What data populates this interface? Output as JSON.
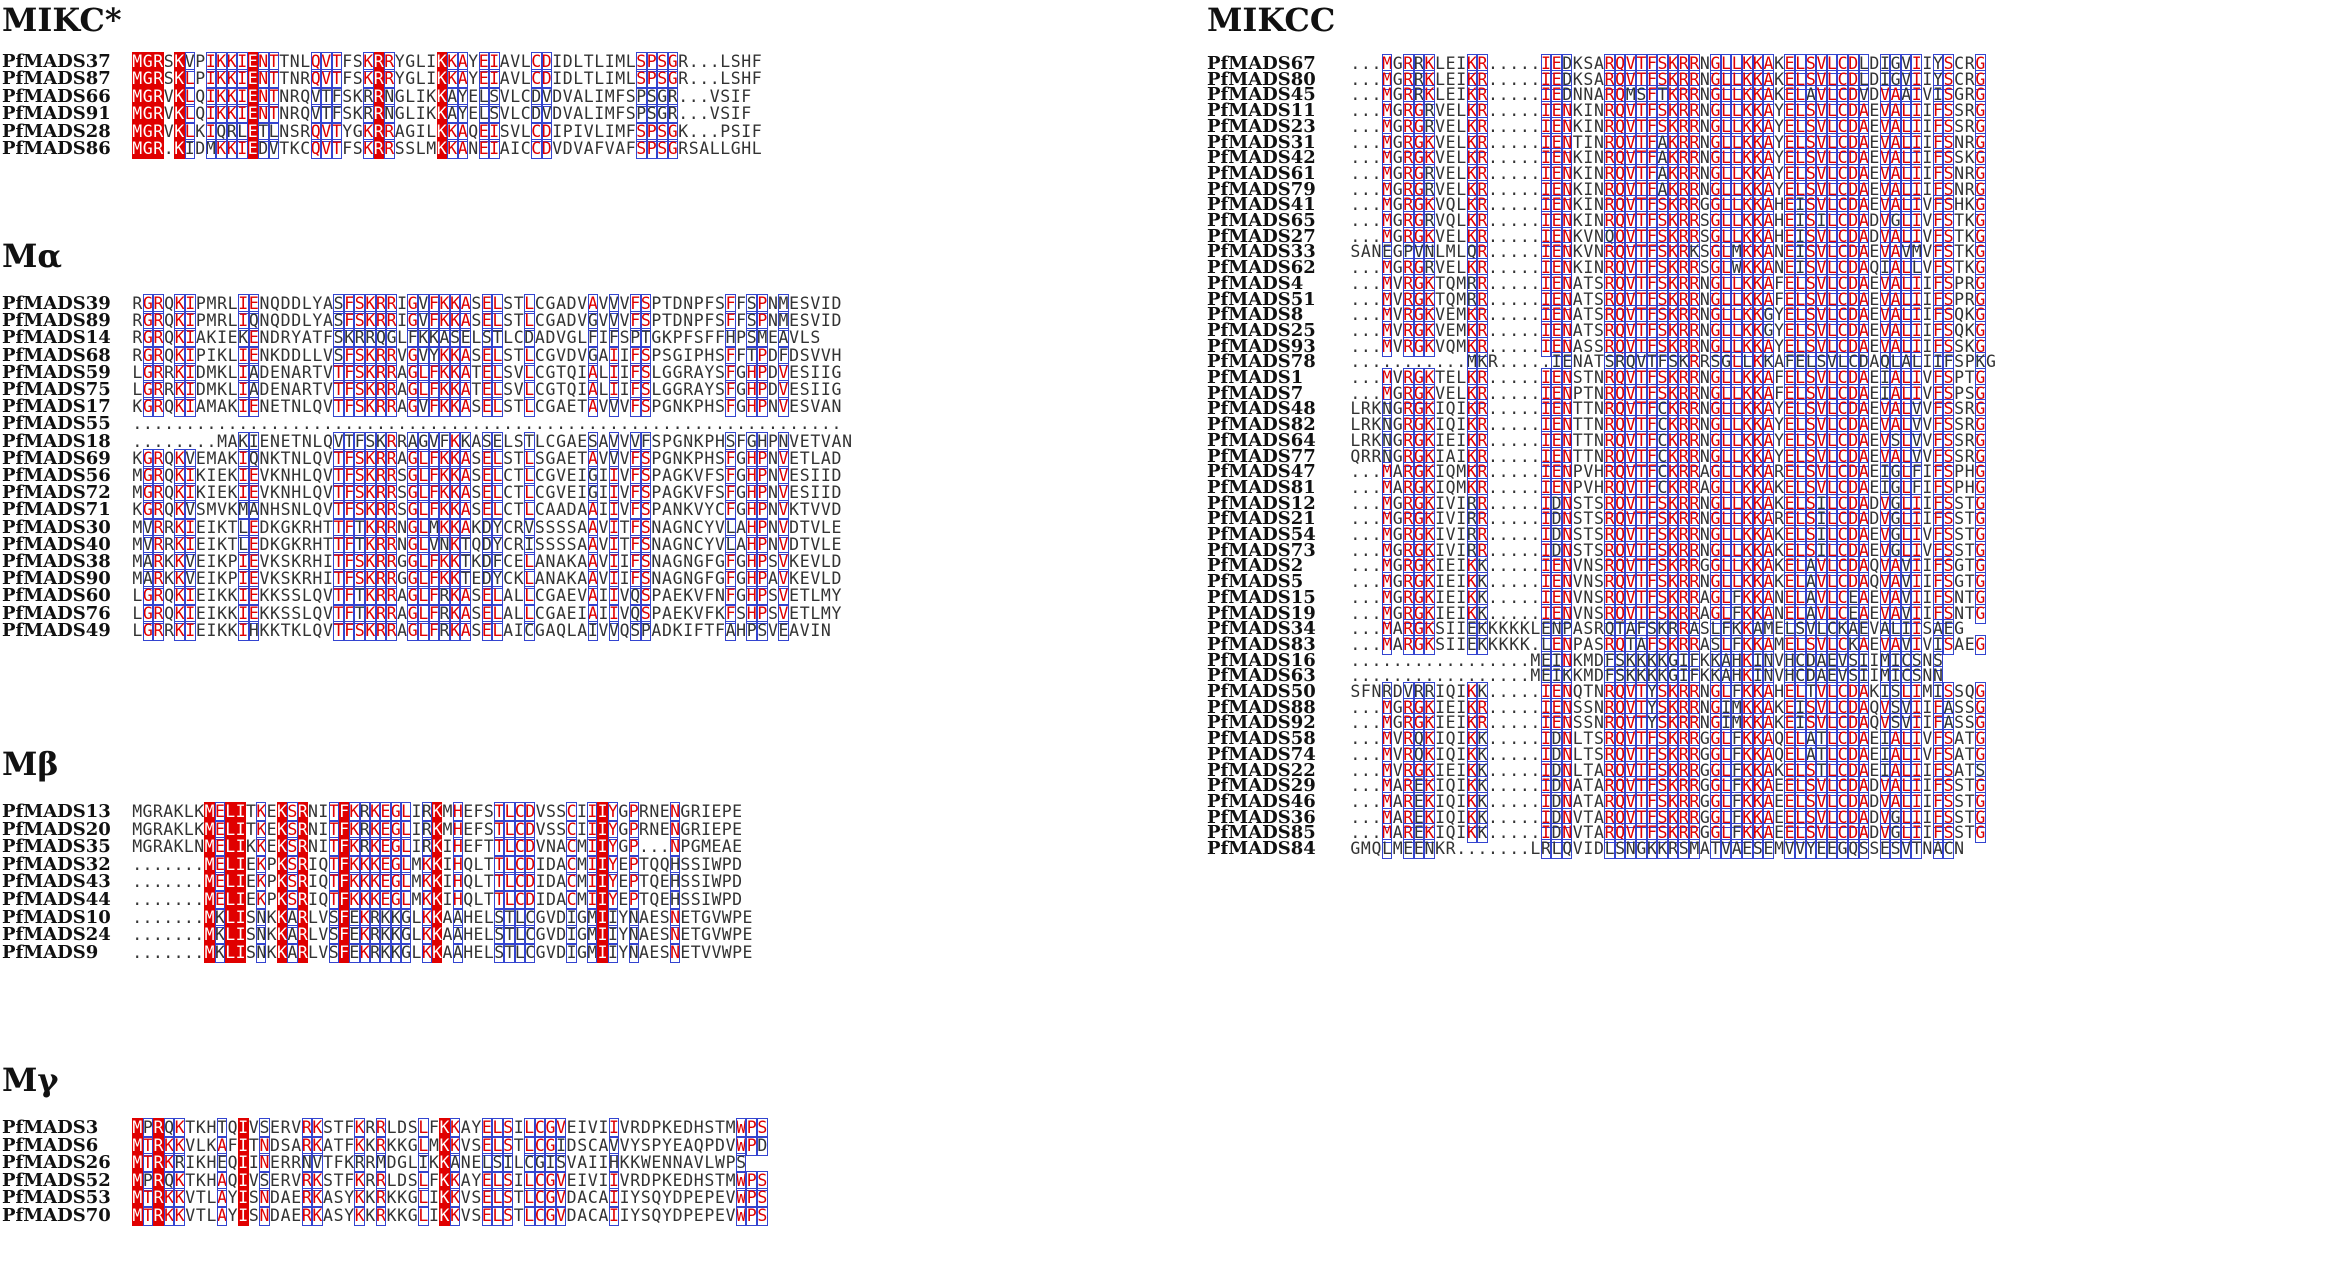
{
  "colors": {
    "identical_bg": "#e00000",
    "similar_text": "#e00000",
    "box_border": "#3344d0",
    "text": "#333333"
  },
  "panels": [
    {
      "title": "MIKC*",
      "rows": [
        {
          "name": "PfMADS37",
          "seq": "MGRSKVPIKKIENTTNLQVTFSKRRYGLIKKAYEIAVLCDIDLTLIMLSPSGR...LSHF"
        },
        {
          "name": "PfMADS87",
          "seq": "MGRSKLPIKKIENTTNRQVTFSKRRYGLIKKAYEIAVLCDIDLTLIMLSPSGR...LSHF"
        },
        {
          "name": "PfMADS66",
          "seq": "MGRVKLQIKKIENTNRQVTFSKRRNGLIKKAYELSVLCDVDVALIMFSPSGR...VSIF"
        },
        {
          "name": "PfMADS91",
          "seq": "MGRVKLQIKKIENTNRQVTFSKRRNGLIKKAYELSVLCDVDVALIMFSPSGR...VSIF"
        },
        {
          "name": "PfMADS28",
          "seq": "MGRVKLKIQRLETLNSRQVTYGKRRAGILKKAQEISVLCDIPIVLIMFSPSGK...PSIF"
        },
        {
          "name": "PfMADS86",
          "seq": "MGR.KIDMKKIEDVTKCQVTFSKRRSSLMKKANEIAICCDVDVAFVAFSPSGRSALLGHL"
        }
      ]
    },
    {
      "title": "Mα",
      "rows": [
        {
          "name": "PfMADS39",
          "seq": "RGRQKIPMRLIENQDDLYASFSKRRIGVFKKASELSTLCGADVAVVVFSPTDNPFSFFSPNMESVID"
        },
        {
          "name": "PfMADS89",
          "seq": "RGRQKIPMRLIQNQDDLYASFSKRRIGVFKKASELSTLCGADVGVVVFSPTDNPFSFFSPNMESVID"
        },
        {
          "name": "PfMADS14",
          "seq": "RGRQKIAKIEKENDRYATFSKRRQGLFKKASELSTLCDADVGLFIFSPTGKPFSFFHPSMEAVLS"
        },
        {
          "name": "PfMADS68",
          "seq": "RGRQKIPIKLIENKDDLLVSFSKRRVGVYKKASELSTLCGVDVGAIIFSPSGIPHSFFTPDFDSVVH"
        },
        {
          "name": "PfMADS59",
          "seq": "LGRRKIDMKLIADENARTVTFSKRRAGLFKKATELSVLCGTQIALIIFSLGGRAYSFGHPDVESIIG"
        },
        {
          "name": "PfMADS75",
          "seq": "LGRRKIDMKLIADENARTVTFSKRRAGLFKKATELSVLCGTQIALIIFSLGGRAYSFGHPDVESIIG"
        },
        {
          "name": "PfMADS17",
          "seq": "KGRQKIAMAKIENETNLQVTFSKRRAGVFKKASELSTLCGAETAVVVFSPGNKPHSFGHPNVESVAN"
        },
        {
          "name": "PfMADS55",
          "seq": "..................................................................."
        },
        {
          "name": "PfMADS18",
          "seq": "........MAKIENETNLQVTFSKRRAGVFKKASELSTLCGAESAVVVFSPGNKPHSFGHPNVETVAN"
        },
        {
          "name": "PfMADS69",
          "seq": "KGRQKVEMAKIQNKTNLQVTFSKRRAGLFKKASELSTLSGAETAVVVFSPGNKPHSFGHPNVETLAD"
        },
        {
          "name": "PfMADS56",
          "seq": "MGRQKIKIEKIEVKNHLQVTFSKRRSGLFKKASELCTLCGVEIGIIVFSPAGKVFSFGHPNVESIID"
        },
        {
          "name": "PfMADS72",
          "seq": "MGRQKIKIEKIEVKNHLQVTFSKRRSGLFKKASELCTLCGVEIGIIVFSPAGKVFSFGHPNVESIID"
        },
        {
          "name": "PfMADS71",
          "seq": "KGRQKVSMVKMANHSNLQVTFSKRRSGLFKKASELCTLCAADAAIIVFSPANKVYCFGHPNVKTVVD"
        },
        {
          "name": "PfMADS30",
          "seq": "MVRRKIEIKTLEDKGKRHTTFTKRRNGLMKKAKDYCRVSSSSAAVITFSNAGNCYVLAHPNVDTVLE"
        },
        {
          "name": "PfMADS40",
          "seq": "MVRRKIEIKTLEDKGKRHTTFTKRRNGLVNKTQDYCRISSSSAAVITFSNAGNCYVLAHPNVDTVLE"
        },
        {
          "name": "PfMADS38",
          "seq": "MARKKVEIKPIEVKSKRHITFSKRRGGLFKKTKDFCELANAKAAVIIFSNAGNGFGFGHPSVKEVLD"
        },
        {
          "name": "PfMADS90",
          "seq": "MARKKVEIKPIEVKSKRHITFSKRRGGLFKKTEDYCKLANAKAAVIIFSNAGNGFGFGHPAVKEVLD"
        },
        {
          "name": "PfMADS60",
          "seq": "LGRQKIEIKKIEKKSSLQVTFTKRRAGLFRKASELALLCGAEVAIIVQSPAEKVFNFGHPSVETLMY"
        },
        {
          "name": "PfMADS76",
          "seq": "LGRQKIEIKKIEKKSSLQVTFTKRRAGLFRKASELALLCGAEIAIIVQSPAEKVFKFSHPSVETLMY"
        },
        {
          "name": "PfMADS49",
          "seq": "LGRRKIEIKKIHKKTKLQVTFSKRRAGLFRKASELAICGAQLAIVVQSPADKIFTFAHPSVEAVIN"
        }
      ]
    },
    {
      "title": "Mβ",
      "rows": [
        {
          "name": "PfMADS13",
          "seq": "MGRAKLKMELITKEKSRNITFKRKEGLIRKMHEFSTLCDVSSCIIIYGPRNENGRIEPE"
        },
        {
          "name": "PfMADS20",
          "seq": "MGRAKLKMELITKEKSRNITFKRKEGLIRKMHEFSTLCDVSSCIIIYGPRNENGRIEPE"
        },
        {
          "name": "PfMADS35",
          "seq": "MGRAKLNMELIKKEKSRNITFKRKEGLIRKIHEFTTLCDVNACMIIYGP...NPGMEAE"
        },
        {
          "name": "PfMADS32",
          "seq": ".......MELIEKPKSRIQTFKKKEGLMKKIHQLTTLCDIDACMIIYEPTQQHSSIWPD"
        },
        {
          "name": "PfMADS43",
          "seq": ".......MELIEKPKSRIQTFKKKEGLMKKIHQLTTLCDIDACMIIYEPTQEHSSIWPD"
        },
        {
          "name": "PfMADS44",
          "seq": ".......MELIEKPKSRIQTFKKKEGLMKKIHQLTTLCDIDACMIIYEPTQEHSSIWPD"
        },
        {
          "name": "PfMADS10",
          "seq": ".......MKLISNKKARLVSFEKRKKGLKKAAHELSTLCGVDIGMIIYNAESNETGVWPE"
        },
        {
          "name": "PfMADS24",
          "seq": ".......MKLISNKKARLVSFEKRKKGLKKAAHELSTLCGVDIGMIIYNAESNETGVWPE"
        },
        {
          "name": "PfMADS9",
          "seq": ".......MKLISNKKARLVSFEKRKKGLKKAAHELSTLCGVDIGMIIYNAESNETVVWPE"
        }
      ]
    },
    {
      "title": "Mγ",
      "rows": [
        {
          "name": "PfMADS3",
          "seq": "MPRQKTKHTQIVSERVRKSTFKRRLDSLFKKAYELSILCGVEIVIIVRDPKEDHSTMWPS"
        },
        {
          "name": "PfMADS6",
          "seq": "MTRKKVLKAFITNDSARKATFKKRKKGLMKKVSELSTLCGIDSCAVVYSPYEAQPDVWPD"
        },
        {
          "name": "PfMADS26",
          "seq": "MTRKRIKHEQIINERRNVTFKRRMDGLIKKANELSILCGISVAIIHKKWENNAVLWPS"
        },
        {
          "name": "PfMADS52",
          "seq": "MPRQKTKHAQIVSERVRKSTFKRRLDSLFKKAYELSILCGVEIVIIVRDPKEDHSTMWPS"
        },
        {
          "name": "PfMADS53",
          "seq": "MTRKKVTLAYISNDAERKASYKKRKKGLIKKVSELSTLCGVDACAIIYSQYDPEPEVWPS"
        },
        {
          "name": "PfMADS70",
          "seq": "MTRKKVTLAYISNDAERKASYKKRKKGLIKKVSELSTLCGVDACAIIYSQYDPEPEVWPS"
        }
      ]
    },
    {
      "title": "MIKCC",
      "rows": [
        {
          "name": "PfMADS67",
          "seq": "...MGRRKLEIKR.....IEDKSARQVTFSKRRNGLLKKAKELSVLCDLDIGVIIYSCRG"
        },
        {
          "name": "PfMADS80",
          "seq": "...MGRRKLEIKR.....IEDKSARQVTFSKRRNGLLKKAKELSVLCDLDIGVIIYSCRG"
        },
        {
          "name": "PfMADS45",
          "seq": "...MGRRKLEIKR.....IEDNNARQMSFTKRRNGLLKKAKELAVLCDVDVAAIVISGRG"
        },
        {
          "name": "PfMADS11",
          "seq": "...MGRGRVELKR.....IENKINRQVTFSKRRNGLLKKAYELSVLCDAEVALIIFSSRG"
        },
        {
          "name": "PfMADS23",
          "seq": "...MGRGRVELKR.....IENKINRQVTFSKRRNGLLKKAYELSVLCDAEVALIIFSSRG"
        },
        {
          "name": "PfMADS31",
          "seq": "...MGRGKVELKR.....IENTINRQVTFAKRRNGLLKKAYELSVLCDAEVALIIFSNRG"
        },
        {
          "name": "PfMADS42",
          "seq": "...MGRGKVELKR.....IENKINRQVTFAKRRNGLLKKAYELSVLCDAEVALIIFSSKG"
        },
        {
          "name": "PfMADS61",
          "seq": "...MGRGRVELKR.....IENKINRQVTFAKRRNGLLKKAYELSVLCDAEVALIIFSNRG"
        },
        {
          "name": "PfMADS79",
          "seq": "...MGRGRVELKR.....IENKINRQVTFAKRRNGLLKKAYELSVLCDAEVALIIFSNRG"
        },
        {
          "name": "PfMADS41",
          "seq": "...MGRGKVQLKR.....IENKINRQVTFSKRRGGLLKKAHEISVLCDAEVALIVFSHKG"
        },
        {
          "name": "PfMADS65",
          "seq": "...MGRGRVQLKR.....IENKINRQVTFSKRRSGLLKKAHEISILCDADVGLIVFSTKG"
        },
        {
          "name": "PfMADS27",
          "seq": "...MGRGKVELKR.....IENKVNQQVTFSKRRSGLLKKAHEISVLCDADVALIVFSTKG"
        },
        {
          "name": "PfMADS33",
          "seq": "SANEGPVNLMLQR.....IENKVNRQVTFSKRKSGLMKKANEISVLCDAEVAVMVFSTKG"
        },
        {
          "name": "PfMADS62",
          "seq": "...MGRGRVELKR.....IENKINRQVTFSKRRSGLWKKANEISVLCDAQIALLVFSTKG"
        },
        {
          "name": "PfMADS4",
          "seq": "...MVRGKTQMRR.....IENATSRQVTFSKRRNGLLKKAFELSVLCDAEVALIIFSPRG"
        },
        {
          "name": "PfMADS51",
          "seq": "...MVRGKTQMRR.....IENATSRQVTFSKRRNGLLKKAFELSVLCDAEVALIIFSPRG"
        },
        {
          "name": "PfMADS8",
          "seq": "...MVRGKVEMKR.....IENATSRQVTFSKRRNGLLKKGYELSVLCDAEVALIIFSQKG"
        },
        {
          "name": "PfMADS25",
          "seq": "...MVRGKVEMKR.....IENATSRQVTFSKRRNGLLKKGYELSVLCDAEVALIIFSQKG"
        },
        {
          "name": "PfMADS93",
          "seq": "...MVRGKVQMKR.....IENASSRQVTFSKRRNGLLKKAYELSVLCDAEVALIIFSSKG"
        },
        {
          "name": "PfMADS78",
          "seq": "...........MKR.....IENATSRQVTFSKRRSGLLKKAFELSVLCDAQLALIIFSPKG"
        },
        {
          "name": "PfMADS1",
          "seq": "...MVRGKTELKR.....IENSTNRQVTFSKRRNGLLKKAFELSVLCDAEIALIVFSPTG"
        },
        {
          "name": "PfMADS7",
          "seq": "...MGRGKVELKR.....IENPTNRQVTFSKRRNGLLKKAFELSVLCDAEIALIVFSPSG"
        },
        {
          "name": "PfMADS48",
          "seq": "LRKNGRGKIQIKR.....IENTTNRQVTFCKRRNGLLKKAYELSVLCDAEVALVVFSSRG"
        },
        {
          "name": "PfMADS82",
          "seq": "LRKNGRGKIQIKR.....IENTTNRQVTFCKRRNGLLKKAYELSVLCDAEVALVVFSSRG"
        },
        {
          "name": "PfMADS64",
          "seq": "LRKNGRGKIEIKR.....IENTTNRQVTFCKRRNGLLKKAYELSVLCDAEVSLVVFSSRG"
        },
        {
          "name": "PfMADS77",
          "seq": "QRRNGRGKIAIKR.....IENTTNRQVTFCKRRNGLLKKAYELSVLCDAEVALVVFSSRG"
        },
        {
          "name": "PfMADS47",
          "seq": "...MARGKIQMKR.....IENPVHRQVTFCKRRAGLLKKARELSVLCDAEIGLFIFSPHG"
        },
        {
          "name": "PfMADS81",
          "seq": "...MARGKIQMKR.....IENPVHRQVTFCKRRAGLLKKAKELSVLCDAEIGLFIFSPHG"
        },
        {
          "name": "PfMADS12",
          "seq": "...MGRGKIVIRR.....IDNSTSRQVTFSKRRNGLLKKAKELSILCDADVGLIIFSSTG"
        },
        {
          "name": "PfMADS21",
          "seq": "...MGRGKIVIRR.....IDNSTSRQVTFSKRRNGLLKKARELSILCDADVGLIIFSSTG"
        },
        {
          "name": "PfMADS54",
          "seq": "...MGRGKIVIRR.....IDNSTSRQVTFSKRRNGLLKKAKELSILCDAEVGLIVFSSTG"
        },
        {
          "name": "PfMADS73",
          "seq": "...MGRGKIVIRR.....IDNSTSRQVTFSKRRNGLLKKAKELSILCDAEVGLIVFSSTG"
        },
        {
          "name": "PfMADS2",
          "seq": "...MGRGKIEIKK.....IENVNSRQVTFSKRRGGLLKKAKELAVLCDAQVAVIIFSGTG"
        },
        {
          "name": "PfMADS5",
          "seq": "...MGRGKIEIKK.....IENVNSRQVTFSKRRNGLLKKAKELAVLCDAQVAVIIFSGTG"
        },
        {
          "name": "PfMADS15",
          "seq": "...MGRGKIEIKK.....IENVNSRQVTFSKRRAGLFKKANELAVLCEAEVAVIIFSNTG"
        },
        {
          "name": "PfMADS19",
          "seq": "...MGRGKIEIKK.....IENVNSRQVTFSKRRAGLFKKANELAVLCEAEVAVIIFSNTG"
        },
        {
          "name": "PfMADS34",
          "seq": "...MARGKSIIEKKKKKLENPASRQTAFSKRRASLFKKAMELSVLCKAEVALIISAEG"
        },
        {
          "name": "PfMADS83",
          "seq": "...MARGKSIIEKKKKK.LENPASRQTAFSKRRASLFKKAMELSVLCKAEVAVIVISAEG"
        },
        {
          "name": "PfMADS16",
          "seq": ".................MEINKMDFSKKKKGIFKKAHKINVHCDAEVSIIMICSNS"
        },
        {
          "name": "PfMADS63",
          "seq": ".................MEIKKMDFSKKKKGIFKKAHKINVHCDAEVSIIMICSNN"
        },
        {
          "name": "PfMADS50",
          "seq": "SFNRDVRRIQIKK.....IENQTNRQVTYSKRRNGLFKKAHELTVLCDAKISLIMISSQG"
        },
        {
          "name": "PfMADS88",
          "seq": "...MGRGKIEIKR.....IENSSNRQVTYSKRRNGIMKKAKEISVLCDAQVSVIIFASSG"
        },
        {
          "name": "PfMADS92",
          "seq": "...MGRGKIEIKR.....IENSSNRQVTYSKRRNGIMKKAKEISVLCDAQVSVIIFASSG"
        },
        {
          "name": "PfMADS58",
          "seq": "...MVRQKIQIKK.....IDNLTSRQVTFSKRRGGLFKKAQELATLCDAEIALIVFSATG"
        },
        {
          "name": "PfMADS74",
          "seq": "...MVRQKIQIKK.....IDNLTSRQVTFSKRRGGLFKKAQELATLCDAEIALIVFSATG"
        },
        {
          "name": "PfMADS22",
          "seq": "...MVRGKIEIKK.....IDNLTARQVTFSKRRGGLFKKAKELSTLCDAEIALIIFSATS"
        },
        {
          "name": "PfMADS29",
          "seq": "...MAREKIQIKK.....IDNATARQVTFSKRRGGLFKKAEELSVLCDADVALIIFSSTG"
        },
        {
          "name": "PfMADS46",
          "seq": "...MAREKIQIKK.....IDNATARQVTFSKRRGGLFKKAEELSVLCDADVALIIFSSTG"
        },
        {
          "name": "PfMADS36",
          "seq": "...MAREKIQIKK.....IDNVTARQVTFSKRRGGLFKKAEELSVLCDADVGLIIFSSTG"
        },
        {
          "name": "PfMADS85",
          "seq": "...MAREKIQIKK.....IDNVTARQVTFSKRRGGLFKKAEELSVLCDADVGLIIFSSTG"
        },
        {
          "name": "PfMADS84",
          "seq": "GMQLMEENKR.......LRLQVIDLSNGKKRSMATVAESEMVVYEEGQSSESVTNACN"
        }
      ]
    }
  ]
}
